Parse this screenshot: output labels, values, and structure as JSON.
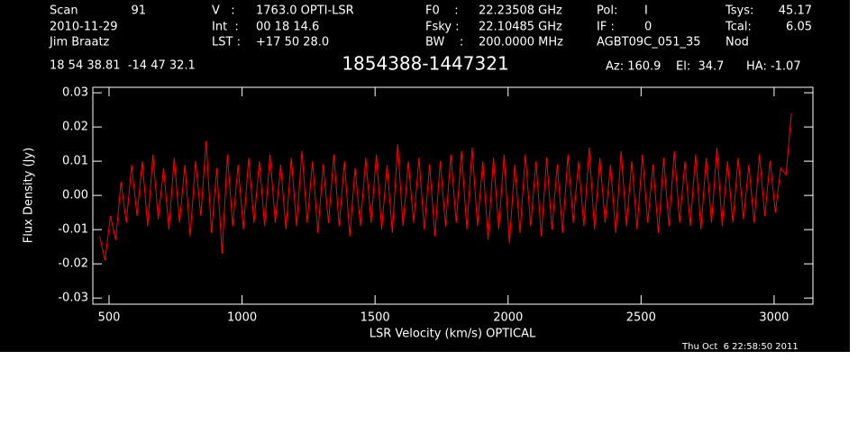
{
  "header": {
    "lines": [
      [
        [
          "Scan",
          "91"
        ],
        [
          "V   :",
          "1763.0 OPTI-LSR"
        ],
        [
          "F0    :",
          "22.23508 GHz"
        ],
        [
          "Pol:",
          "I"
        ],
        [
          "Tsys:",
          "45.17"
        ]
      ],
      [
        [
          "2010-11-29"
        ],
        [
          "Int  :",
          "00 18 14.6"
        ],
        [
          "Fsky :",
          "22.10485 GHz"
        ],
        [
          "IF :",
          "0"
        ],
        [
          "Tcal:",
          "6.05"
        ]
      ],
      [
        [
          "Jim Braatz"
        ],
        [
          "LST :",
          "+17 50 28.0"
        ],
        [
          "BW    :",
          "200.0000 MHz"
        ],
        [
          "AGBT09C_051_35"
        ],
        [
          "Nod"
        ]
      ]
    ],
    "position": "18 54 38.81  -14 47 32.1",
    "pointing": [
      "Az: 160.9",
      "El:  34.7",
      "HA: -1.07"
    ],
    "timestamp": "Thu Oct  6 22:58:50 2011"
  },
  "chart_data": {
    "type": "line",
    "title": "1854388-1447321",
    "x_label": "LSR Velocity (km/s) OPTICAL",
    "y_label": "Flux Density (Jy)",
    "color": "#ff0000",
    "xlim": [
      439,
      3146
    ],
    "ylim": [
      -0.0318,
      0.0316
    ],
    "xticks": [
      500,
      1000,
      1500,
      2000,
      2500,
      3000
    ],
    "yticks": [
      0.03,
      0.02,
      0.01,
      {
        "value": 0,
        "label": "0.00"
      },
      -0.01,
      -0.02,
      -0.03
    ],
    "x": [
      465,
      485,
      505,
      525,
      545,
      565,
      585,
      605,
      625,
      645,
      665,
      685,
      705,
      725,
      745,
      765,
      785,
      805,
      825,
      845,
      865,
      885,
      905,
      925,
      945,
      965,
      985,
      1005,
      1025,
      1045,
      1065,
      1085,
      1105,
      1125,
      1145,
      1165,
      1185,
      1205,
      1225,
      1245,
      1265,
      1285,
      1305,
      1325,
      1345,
      1365,
      1385,
      1405,
      1425,
      1445,
      1465,
      1485,
      1505,
      1525,
      1545,
      1565,
      1585,
      1605,
      1625,
      1645,
      1665,
      1685,
      1705,
      1725,
      1745,
      1765,
      1785,
      1805,
      1825,
      1845,
      1865,
      1885,
      1905,
      1925,
      1945,
      1965,
      1985,
      2005,
      2025,
      2045,
      2065,
      2085,
      2105,
      2125,
      2145,
      2165,
      2185,
      2205,
      2225,
      2245,
      2265,
      2285,
      2305,
      2325,
      2345,
      2365,
      2385,
      2405,
      2425,
      2445,
      2465,
      2485,
      2505,
      2525,
      2545,
      2565,
      2585,
      2605,
      2625,
      2645,
      2665,
      2685,
      2705,
      2725,
      2745,
      2765,
      2785,
      2805,
      2825,
      2845,
      2865,
      2885,
      2905,
      2925,
      2945,
      2965,
      2985,
      3005,
      3025,
      3045,
      3065
    ],
    "values": [
      -0.012,
      -0.019,
      -0.006,
      -0.013,
      0.004,
      -0.008,
      0.009,
      -0.006,
      0.01,
      -0.009,
      0.012,
      -0.007,
      0.008,
      -0.01,
      0.011,
      -0.008,
      0.009,
      -0.012,
      0.01,
      -0.006,
      0.016,
      -0.011,
      0.008,
      -0.017,
      0.012,
      -0.009,
      0.009,
      -0.01,
      0.011,
      -0.008,
      0.01,
      -0.009,
      0.012,
      -0.008,
      0.009,
      -0.01,
      0.011,
      -0.009,
      0.013,
      -0.008,
      0.01,
      -0.011,
      0.009,
      -0.008,
      0.012,
      -0.009,
      0.01,
      -0.012,
      0.008,
      -0.009,
      0.011,
      -0.008,
      0.012,
      -0.01,
      0.009,
      -0.011,
      0.015,
      -0.009,
      0.01,
      -0.008,
      0.011,
      -0.01,
      0.009,
      -0.012,
      0.01,
      -0.009,
      0.012,
      -0.008,
      0.013,
      -0.01,
      0.014,
      -0.009,
      0.01,
      -0.013,
      0.011,
      -0.01,
      0.012,
      -0.014,
      0.009,
      -0.011,
      0.012,
      -0.009,
      0.01,
      -0.012,
      0.011,
      -0.01,
      0.009,
      -0.011,
      0.012,
      -0.008,
      0.01,
      -0.009,
      0.014,
      -0.01,
      0.011,
      -0.008,
      0.009,
      -0.011,
      0.013,
      -0.009,
      0.01,
      -0.01,
      0.012,
      -0.008,
      0.009,
      -0.011,
      0.011,
      -0.009,
      0.013,
      -0.008,
      0.01,
      -0.009,
      0.012,
      -0.01,
      0.011,
      -0.008,
      0.014,
      -0.009,
      0.01,
      -0.008,
      0.011,
      -0.007,
      0.009,
      -0.008,
      0.012,
      -0.006,
      0.01,
      -0.005,
      0.008,
      0.006,
      0.024
    ]
  }
}
